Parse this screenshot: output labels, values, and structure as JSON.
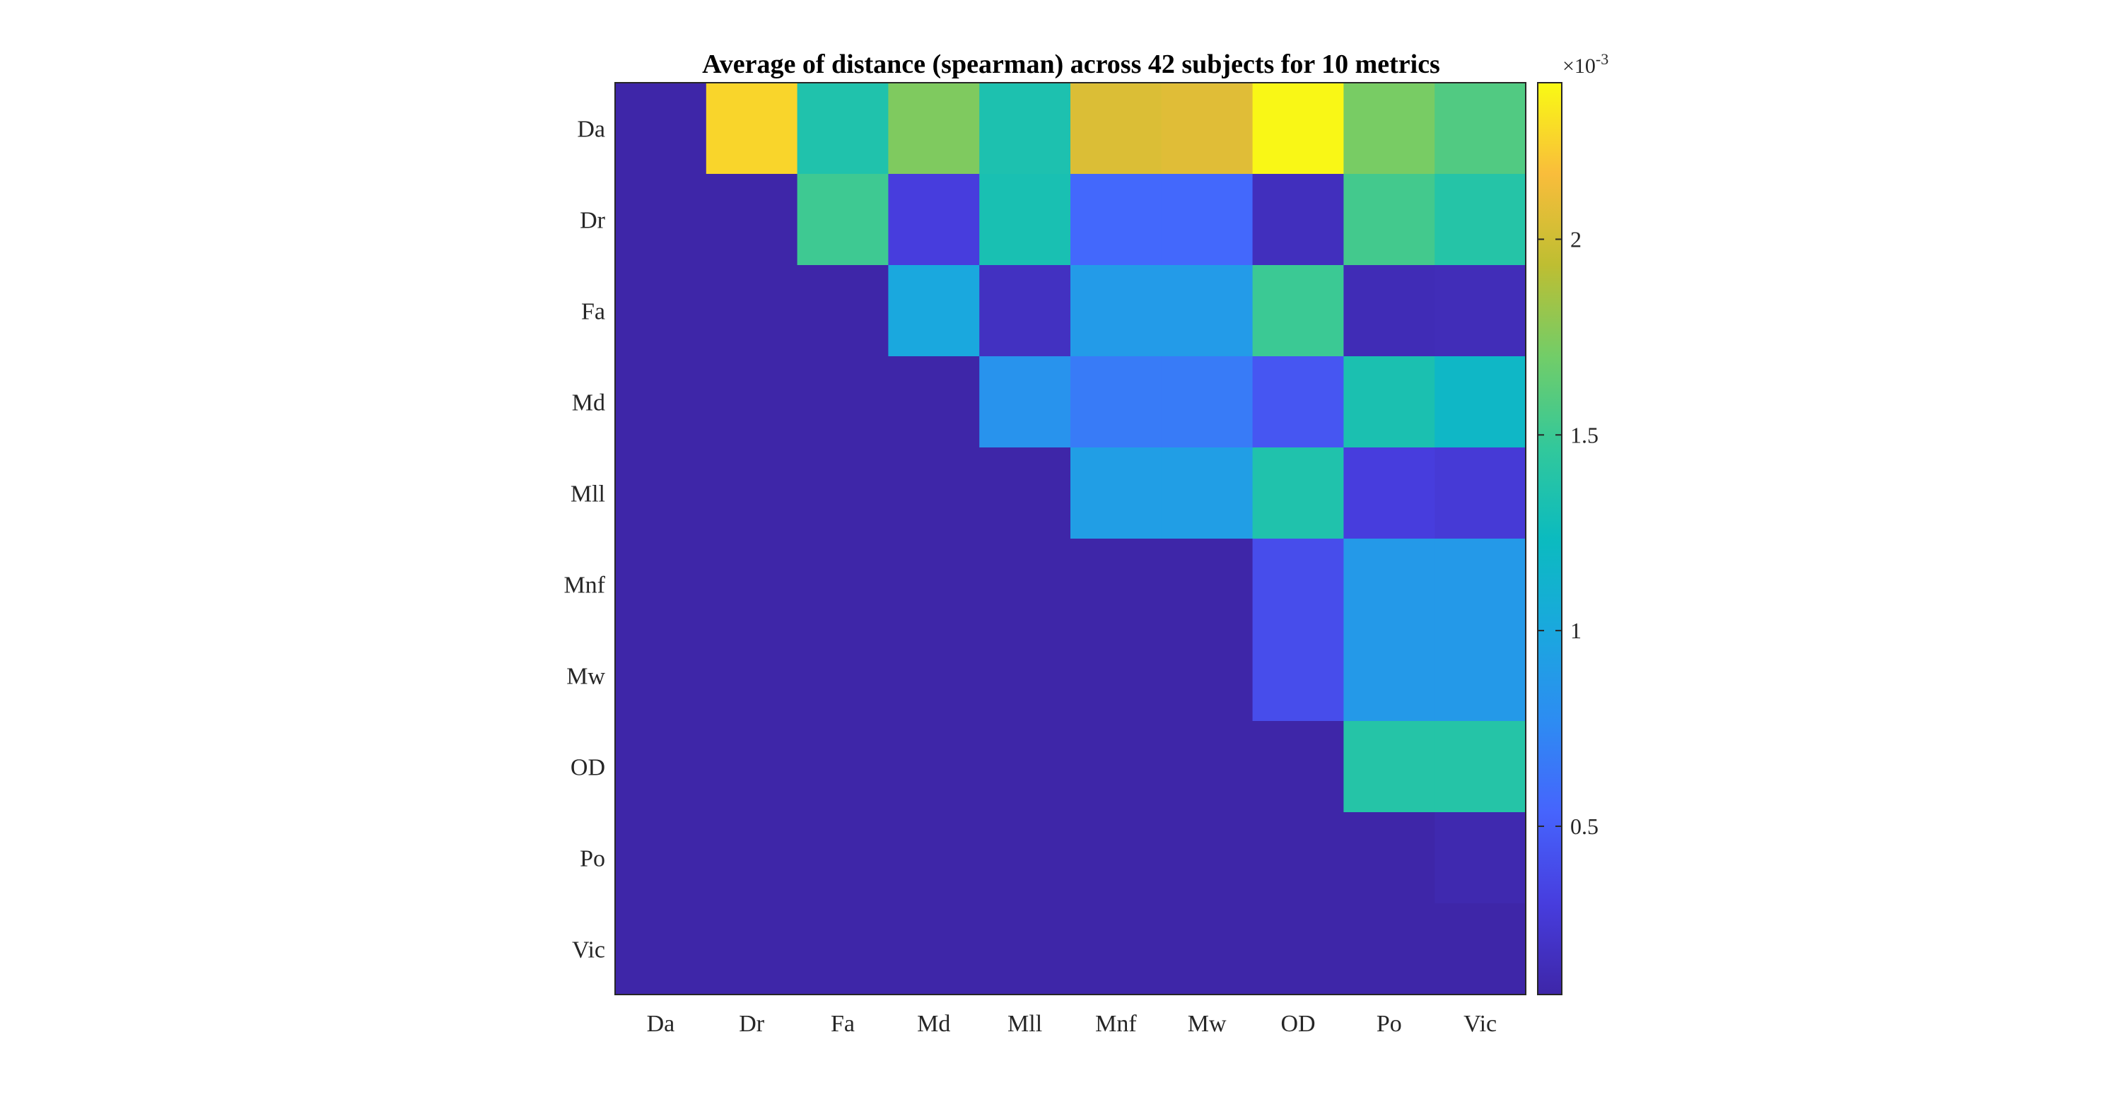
{
  "chart_data": {
    "type": "heatmap",
    "title": "Average of distance (spearman) across 42 subjects for 10 metrics",
    "x_categories": [
      "Da",
      "Dr",
      "Fa",
      "Md",
      "Mll",
      "Mnf",
      "Mw",
      "OD",
      "Po",
      "Vic"
    ],
    "y_categories": [
      "Da",
      "Dr",
      "Fa",
      "Md",
      "Mll",
      "Mnf",
      "Mw",
      "OD",
      "Po",
      "Vic"
    ],
    "values": [
      [
        7e-05,
        0.00226,
        0.00136,
        0.00174,
        0.00134,
        0.00205,
        0.00207,
        0.00239,
        0.00172,
        0.00158
      ],
      [
        7e-05,
        7e-05,
        0.00151,
        0.0003,
        0.00132,
        0.00056,
        0.00056,
        0.00016,
        0.00153,
        0.00139
      ],
      [
        7e-05,
        7e-05,
        7e-05,
        0.001,
        0.00018,
        0.00089,
        0.00089,
        0.0015,
        0.00013,
        0.00014
      ],
      [
        7e-05,
        7e-05,
        7e-05,
        7e-05,
        0.00083,
        0.00067,
        0.00067,
        0.00045,
        0.00133,
        0.00118
      ],
      [
        7e-05,
        7e-05,
        7e-05,
        7e-05,
        7e-05,
        0.00092,
        0.00092,
        0.00136,
        0.0003,
        0.00027
      ],
      [
        7e-05,
        7e-05,
        7e-05,
        7e-05,
        7e-05,
        7e-05,
        7e-05,
        0.0004,
        0.00088,
        0.00088
      ],
      [
        7e-05,
        7e-05,
        7e-05,
        7e-05,
        7e-05,
        7e-05,
        7e-05,
        0.0004,
        0.00088,
        0.00088
      ],
      [
        7e-05,
        7e-05,
        7e-05,
        7e-05,
        7e-05,
        7e-05,
        7e-05,
        7e-05,
        0.00139,
        0.00139
      ],
      [
        7e-05,
        7e-05,
        7e-05,
        7e-05,
        7e-05,
        7e-05,
        7e-05,
        7e-05,
        7e-05,
        0.0001
      ],
      [
        7e-05,
        7e-05,
        7e-05,
        7e-05,
        7e-05,
        7e-05,
        7e-05,
        7e-05,
        7e-05,
        7e-05
      ]
    ],
    "colorbar": {
      "colormap": "parula",
      "range": [
        7e-05,
        0.0024
      ],
      "ticks": [
        0.0005,
        0.001,
        0.0015,
        0.002
      ],
      "tick_labels": [
        "0.5",
        "1",
        "1.5",
        "2"
      ],
      "multiplier_label": "×10",
      "multiplier_exponent": "-3"
    }
  }
}
